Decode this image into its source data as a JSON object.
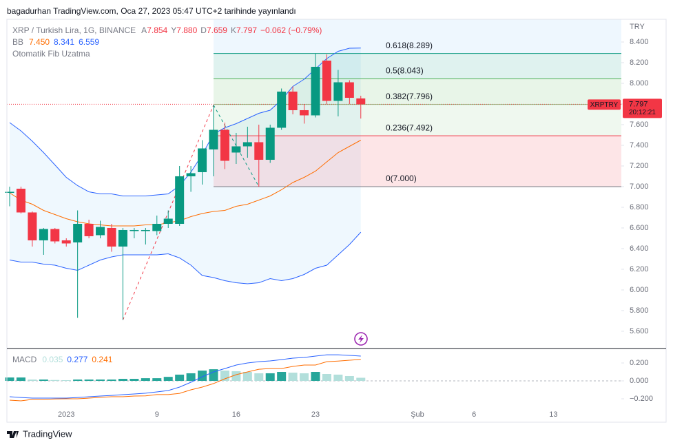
{
  "header": "bagadurhan TradingView.com, Oca 27, 2023 05:47 UTC+2 tarihinde yayınlandı",
  "footer": "TradingView",
  "chart_data": {
    "type": "candlestick",
    "symbol_title": "XRP / Turkish Lira, 1G, BINANCE",
    "legend_prefixes": [
      "A",
      "Y",
      "D",
      "K"
    ],
    "legend_values": [
      "7.854",
      "7.880",
      "7.659",
      "7.797"
    ],
    "change_label": "−0.062 (−0.79%)",
    "currency": "TRY",
    "symbol_tag": "XRPTRY",
    "countdown": "20:12:21",
    "up_color": "#089981",
    "down_color": "#f23645",
    "categories": [
      null,
      null,
      null,
      null,
      null,
      "2023",
      null,
      null,
      null,
      null,
      null,
      null,
      null,
      "9",
      null,
      null,
      null,
      null,
      null,
      null,
      "16",
      null,
      null,
      null,
      null,
      null,
      null,
      "23",
      null,
      null,
      null,
      null,
      null,
      null,
      null,
      null,
      "Şub",
      null,
      null,
      null,
      null,
      "6",
      null,
      null,
      null,
      null,
      null,
      null,
      "13",
      null,
      null,
      null,
      null,
      null,
      null
    ],
    "open": [
      6.94,
      6.98,
      6.75,
      6.48,
      6.59,
      6.48,
      6.46,
      6.64,
      6.53,
      6.6,
      6.42,
      6.57,
      6.57,
      6.57,
      6.64,
      6.64,
      7.1,
      7.14,
      7.36,
      7.55,
      7.33,
      7.39,
      7.43,
      7.26,
      7.57,
      7.92,
      7.74,
      7.69,
      8.22,
      7.83,
      8.01,
      7.854,
      null,
      null,
      null,
      null,
      null,
      null,
      null,
      null,
      null,
      null,
      null,
      null,
      null,
      null,
      null,
      null,
      null,
      null,
      null,
      null,
      null,
      null,
      null
    ],
    "high": [
      7.0,
      7.0,
      6.76,
      6.6,
      6.6,
      6.5,
      6.77,
      6.68,
      6.67,
      6.64,
      6.6,
      6.6,
      6.6,
      6.72,
      6.77,
      7.2,
      7.2,
      7.45,
      7.79,
      7.62,
      7.52,
      7.58,
      7.6,
      7.6,
      7.95,
      7.97,
      7.8,
      8.29,
      8.28,
      8.13,
      8.03,
      7.88,
      null,
      null,
      null,
      null,
      null,
      null,
      null,
      null,
      null,
      null,
      null,
      null,
      null,
      null,
      null,
      null,
      null,
      null,
      null,
      null,
      null,
      null,
      null
    ],
    "low": [
      6.81,
      6.74,
      6.42,
      6.34,
      6.45,
      6.42,
      5.73,
      6.5,
      6.5,
      6.37,
      5.71,
      6.5,
      6.44,
      6.53,
      6.6,
      6.62,
      6.95,
      7.02,
      7.1,
      7.17,
      7.22,
      7.28,
      7.0,
      7.23,
      7.55,
      7.7,
      7.61,
      7.67,
      7.8,
      7.68,
      7.8,
      7.659,
      null,
      null,
      null,
      null,
      null,
      null,
      null,
      null,
      null,
      null,
      null,
      null,
      null,
      null,
      null,
      null,
      null,
      null,
      null,
      null,
      null,
      null,
      null
    ],
    "close": [
      6.95,
      6.75,
      6.48,
      6.59,
      6.47,
      6.45,
      6.64,
      6.52,
      6.61,
      6.42,
      6.58,
      6.58,
      6.58,
      6.64,
      6.69,
      7.1,
      7.13,
      7.37,
      7.55,
      7.25,
      7.39,
      7.43,
      7.26,
      7.57,
      7.92,
      7.74,
      7.69,
      8.16,
      7.83,
      8.01,
      7.86,
      7.797,
      null,
      null,
      null,
      null,
      null,
      null,
      null,
      null,
      null,
      null,
      null,
      null,
      null,
      null,
      null,
      null,
      null,
      null,
      null,
      null,
      null,
      null,
      null
    ],
    "ylim": [
      5.433,
      8.62
    ],
    "yticks": [
      {
        "value": 8.4,
        "label": "8.400"
      },
      {
        "value": 8.2,
        "label": "8.200"
      },
      {
        "value": 8.0,
        "label": "8.000"
      },
      {
        "value": 7.8,
        "label": "7.800"
      },
      {
        "value": 7.6,
        "label": "7.600"
      },
      {
        "value": 7.4,
        "label": "7.400"
      },
      {
        "value": 7.2,
        "label": "7.200"
      },
      {
        "value": 7.0,
        "label": "7.000"
      },
      {
        "value": 6.8,
        "label": "6.800"
      },
      {
        "value": 6.6,
        "label": "6.600"
      },
      {
        "value": 6.4,
        "label": "6.400"
      },
      {
        "value": 6.2,
        "label": "6.200"
      },
      {
        "value": 6.0,
        "label": "6.000"
      },
      {
        "value": 5.8,
        "label": "5.800"
      },
      {
        "value": 5.6,
        "label": "5.600"
      }
    ],
    "bollinger": {
      "title": "BB",
      "series": [
        {
          "color": "#ff6d00",
          "legend_label": "7.450",
          "values": [
            6.94,
            6.87,
            6.83,
            6.77,
            6.73,
            6.69,
            6.66,
            6.64,
            6.63,
            6.62,
            6.62,
            6.62,
            6.63,
            6.63,
            6.65,
            6.67,
            6.71,
            6.74,
            6.76,
            6.77,
            6.81,
            6.83,
            6.87,
            6.91,
            6.97,
            7.04,
            7.09,
            7.15,
            7.24,
            7.33,
            7.39,
            7.45,
            null,
            null,
            null,
            null,
            null,
            null,
            null,
            null,
            null,
            null,
            null,
            null,
            null,
            null,
            null,
            null,
            null,
            null,
            null,
            null,
            null,
            null,
            null
          ]
        },
        {
          "color": "#2962ff",
          "legend_label": "8.341",
          "values": [
            7.62,
            7.54,
            7.44,
            7.33,
            7.21,
            7.09,
            7.01,
            6.95,
            6.93,
            6.93,
            6.91,
            6.91,
            6.91,
            6.92,
            6.93,
            7.01,
            7.14,
            7.31,
            7.51,
            7.57,
            7.61,
            7.66,
            7.71,
            7.74,
            7.84,
            7.97,
            8.04,
            8.14,
            8.24,
            8.31,
            8.34,
            8.341,
            null,
            null,
            null,
            null,
            null,
            null,
            null,
            null,
            null,
            null,
            null,
            null,
            null,
            null,
            null,
            null,
            null,
            null,
            null,
            null,
            null,
            null,
            null
          ]
        },
        {
          "color": "#2962ff",
          "legend_label": "6.559",
          "values": [
            6.29,
            6.27,
            6.27,
            6.25,
            6.24,
            6.21,
            6.19,
            6.24,
            6.29,
            6.32,
            6.34,
            6.34,
            6.34,
            6.34,
            6.35,
            6.31,
            6.24,
            6.14,
            6.12,
            6.09,
            6.07,
            6.06,
            6.07,
            6.11,
            6.09,
            6.11,
            6.15,
            6.21,
            6.24,
            6.34,
            6.44,
            6.559,
            null,
            null,
            null,
            null,
            null,
            null,
            null,
            null,
            null,
            null,
            null,
            null,
            null,
            null,
            null,
            null,
            null,
            null,
            null,
            null,
            null,
            null,
            null
          ]
        }
      ]
    },
    "fib": {
      "title": "Otomatik Fib Uzatma",
      "levels": [
        {
          "label": "0.618(8.289)",
          "value": 8.289,
          "color": "#089981"
        },
        {
          "label": "0.5(8.043)",
          "value": 8.043,
          "color": "#4caf50"
        },
        {
          "label": "0.382(7.796)",
          "value": 7.796,
          "color": "#81c784"
        },
        {
          "label": "0.236(7.492)",
          "value": 7.492,
          "color": "#f23645"
        },
        {
          "label": "0(7.000)",
          "value": 7.0,
          "color": "#787b86"
        }
      ]
    },
    "macd": {
      "title": "MACD",
      "ylim": [
        -0.3,
        0.354
      ],
      "yticks": [
        {
          "value": 0.2,
          "label": "0.200"
        },
        {
          "value": 0,
          "label": "0.000"
        },
        {
          "value": -0.2,
          "label": "−0.200"
        }
      ],
      "histogram": {
        "rising_color": "#26a69a",
        "falling_color": "#b2dfdb",
        "values": [
          0.038,
          0.038,
          0.015,
          0.015,
          0.01,
          0.008,
          0.015,
          0.015,
          0.015,
          0.015,
          0.023,
          0.023,
          0.03,
          0.03,
          0.045,
          0.07,
          0.085,
          0.115,
          0.13,
          0.115,
          0.108,
          0.1,
          0.085,
          0.085,
          0.1,
          0.092,
          0.085,
          0.1,
          0.077,
          0.07,
          0.054,
          0.035,
          null,
          null,
          null,
          null,
          null,
          null,
          null,
          null,
          null,
          null,
          null,
          null,
          null,
          null,
          null,
          null,
          null,
          null,
          null,
          null,
          null,
          null,
          null
        ]
      },
      "macd_line": {
        "color": "#2962ff",
        "values": [
          -0.177,
          -0.185,
          -0.192,
          -0.192,
          -0.192,
          -0.192,
          -0.185,
          -0.177,
          -0.169,
          -0.162,
          -0.154,
          -0.146,
          -0.138,
          -0.123,
          -0.108,
          -0.069,
          -0.015,
          0.046,
          0.1,
          0.138,
          0.177,
          0.2,
          0.215,
          0.223,
          0.238,
          0.254,
          0.262,
          0.277,
          0.292,
          0.292,
          0.285,
          0.277,
          null,
          null,
          null,
          null,
          null,
          null,
          null,
          null,
          null,
          null,
          null,
          null,
          null,
          null,
          null,
          null,
          null,
          null,
          null,
          null,
          null,
          null,
          null
        ]
      },
      "signal_line": {
        "color": "#ff6d00",
        "values": [
          -0.215,
          -0.223,
          -0.207,
          -0.207,
          -0.202,
          -0.2,
          -0.2,
          -0.192,
          -0.184,
          -0.177,
          -0.177,
          -0.169,
          -0.168,
          -0.153,
          -0.153,
          -0.139,
          -0.1,
          -0.069,
          -0.03,
          0.023,
          0.069,
          0.1,
          0.13,
          0.138,
          0.138,
          0.162,
          0.177,
          0.177,
          0.215,
          0.222,
          0.231,
          0.241,
          null,
          null,
          null,
          null,
          null,
          null,
          null,
          null,
          null,
          null,
          null,
          null,
          null,
          null,
          null,
          null,
          null,
          null,
          null,
          null,
          null,
          null,
          null
        ]
      }
    }
  }
}
